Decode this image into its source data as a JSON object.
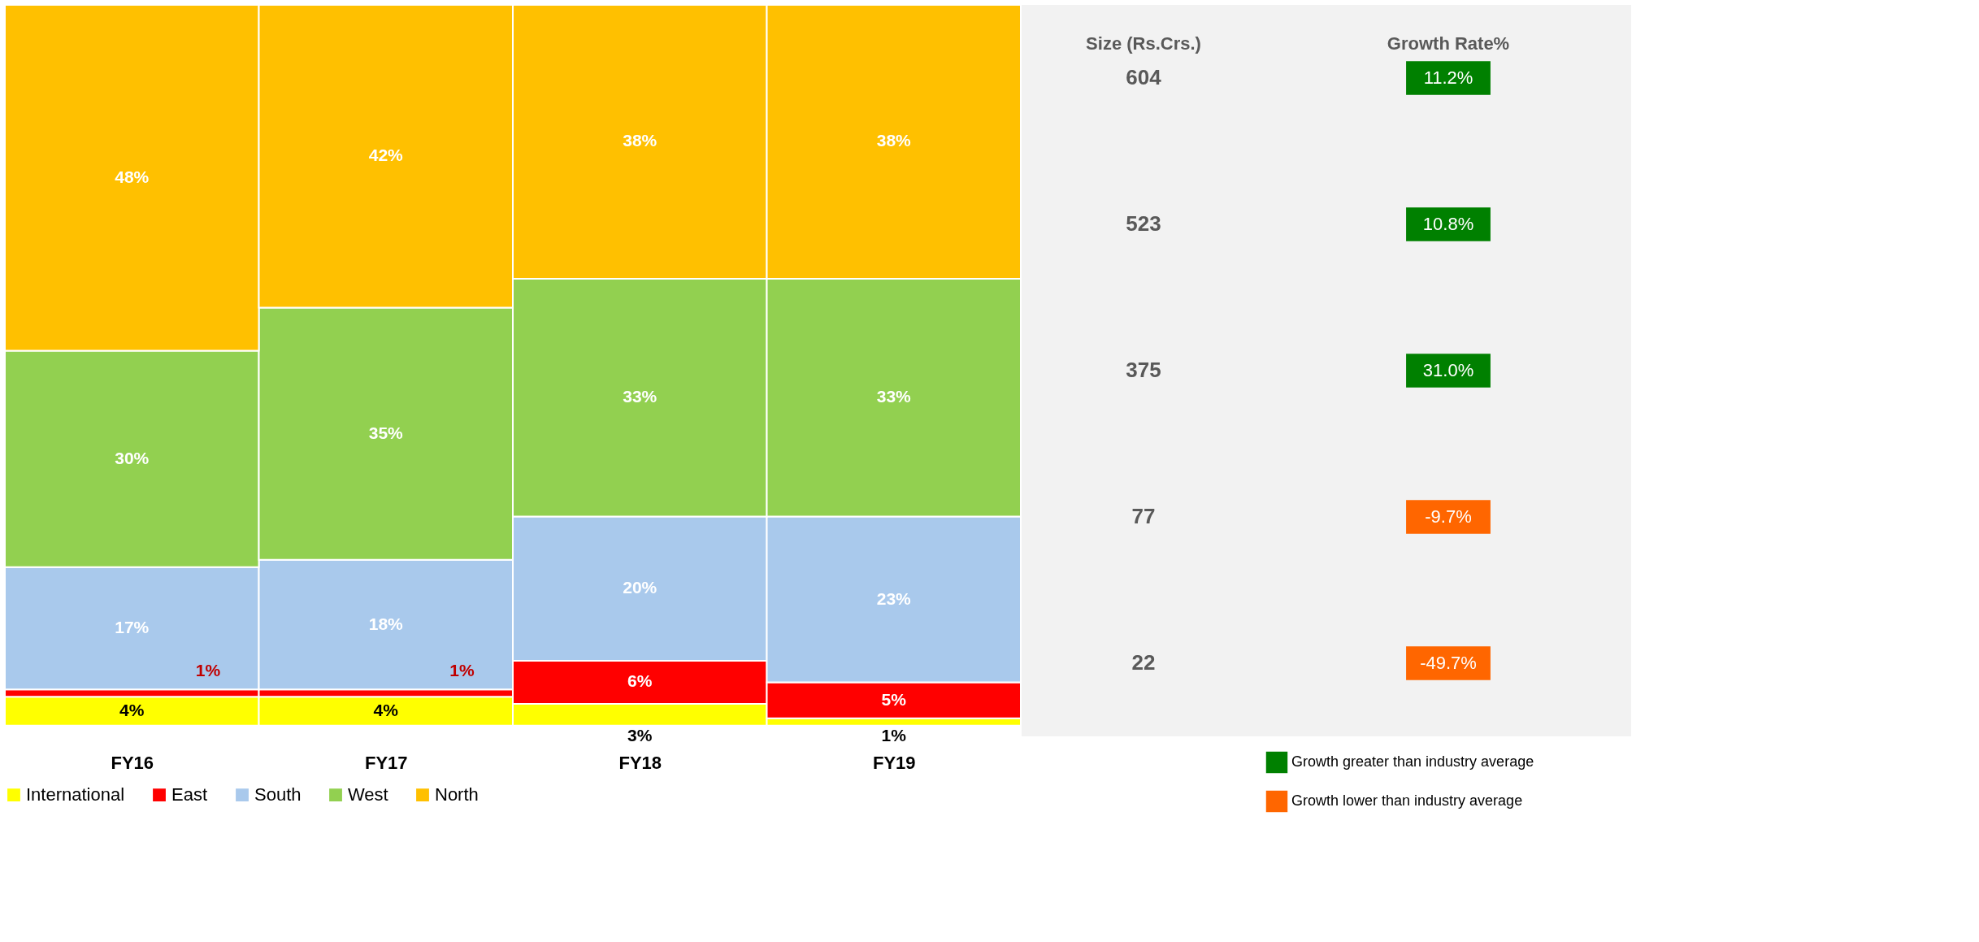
{
  "chart_data": [
    {
      "type": "bar",
      "stacked": true,
      "legend": "bottom",
      "grid": false,
      "categories": [
        "FY16",
        "FY17",
        "FY18",
        "FY19"
      ],
      "series": [
        {
          "name": "International",
          "color": "#ffff00",
          "values": [
            4,
            4,
            3,
            1
          ],
          "value_labels": [
            "4%",
            "4%",
            "3%",
            "1%"
          ]
        },
        {
          "name": "East",
          "color": "#ff0000",
          "values": [
            1,
            1,
            6,
            5
          ],
          "value_labels": [
            "1%",
            "1%",
            "6%",
            "5%"
          ]
        },
        {
          "name": "South",
          "color": "#a9c9ec",
          "values": [
            17,
            18,
            20,
            23
          ],
          "value_labels": [
            "17%",
            "18%",
            "20%",
            "23%"
          ]
        },
        {
          "name": "West",
          "color": "#92d050",
          "values": [
            30,
            35,
            33,
            33
          ],
          "value_labels": [
            "30%",
            "35%",
            "33%",
            "33%"
          ]
        },
        {
          "name": "North",
          "color": "#ffc000",
          "values": [
            48,
            42,
            38,
            38
          ],
          "value_labels": [
            "48%",
            "42%",
            "38%",
            "38%"
          ]
        }
      ]
    },
    {
      "type": "other",
      "title": "Size (Rs.Crs.)",
      "data_labels": true,
      "categories": [
        null,
        null,
        null,
        null,
        null
      ],
      "values": [
        604,
        523,
        375,
        77,
        22
      ]
    },
    {
      "type": "other",
      "title": "Growth Rate%",
      "categories": [
        null,
        null,
        null,
        null,
        null
      ],
      "values": [
        11.2,
        10.8,
        31.0,
        -9.7,
        -49.7
      ],
      "value_labels": [
        "11.2%",
        "10.8%",
        "31.0%",
        "-9.7%",
        "-49.7%"
      ],
      "colors": [
        "#008000",
        "#008000",
        "#008000",
        "#ff6600",
        "#ff6600"
      ],
      "annotations": [
        "Growth greater than industry average",
        "Growth lower than industry average"
      ]
    }
  ]
}
